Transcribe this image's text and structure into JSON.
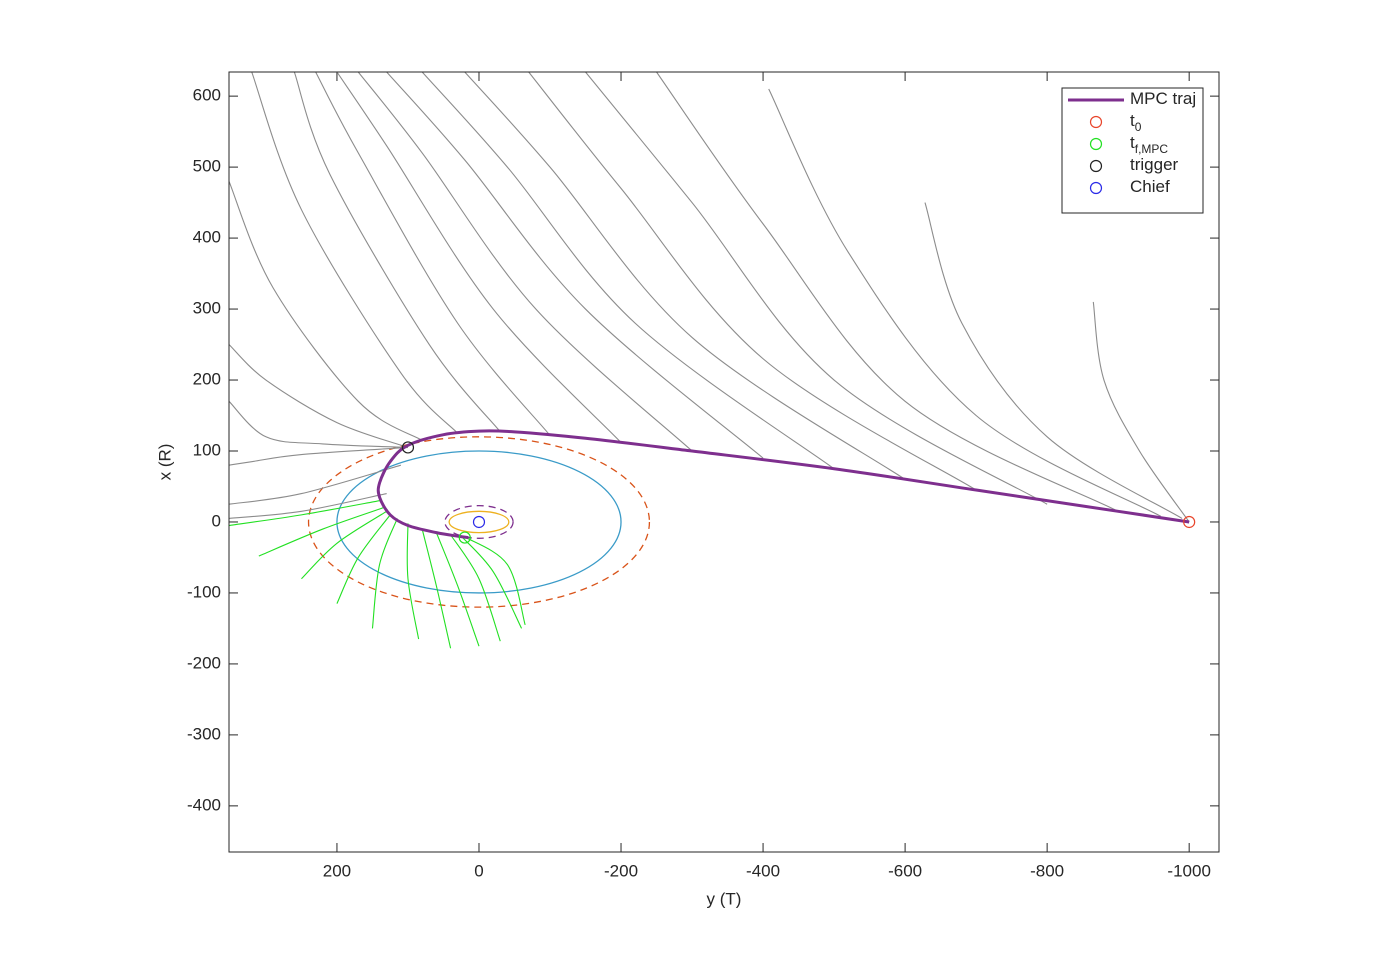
{
  "chart_data": {
    "type": "line",
    "xlabel": "y (T)",
    "ylabel": "x (R)",
    "xlim": [
      352,
      -1042
    ],
    "ylim": [
      -465,
      634
    ],
    "xticks": [
      200,
      0,
      -200,
      -400,
      -600,
      -800,
      -1000
    ],
    "yticks": [
      -400,
      -300,
      -200,
      -100,
      0,
      100,
      200,
      300,
      400,
      500,
      600
    ],
    "legend": "upper right",
    "series": [
      {
        "color": "#8c8c8c",
        "x": [
          -1000,
          -930,
          -880,
          -865
        ],
        "y": [
          0,
          100,
          200,
          310
        ]
      },
      {
        "color": "#8c8c8c",
        "x": [
          -990,
          -800,
          -680,
          -628
        ],
        "y": [
          5,
          120,
          280,
          450
        ]
      },
      {
        "color": "#8c8c8c",
        "x": [
          -960,
          -700,
          -520,
          -408
        ],
        "y": [
          8,
          150,
          380,
          610
        ]
      },
      {
        "color": "#8c8c8c",
        "x": [
          -900,
          -600,
          -400,
          -250
        ],
        "y": [
          15,
          170,
          420,
          634
        ]
      },
      {
        "color": "#8c8c8c",
        "x": [
          -800,
          -500,
          -300,
          -150
        ],
        "y": [
          25,
          200,
          450,
          634
        ]
      },
      {
        "color": "#8c8c8c",
        "x": [
          -700,
          -400,
          -200,
          -70
        ],
        "y": [
          45,
          230,
          470,
          634
        ]
      },
      {
        "color": "#8c8c8c",
        "x": [
          -600,
          -300,
          -100,
          20
        ],
        "y": [
          60,
          260,
          500,
          634
        ]
      },
      {
        "color": "#8c8c8c",
        "x": [
          -500,
          -220,
          -40,
          80
        ],
        "y": [
          75,
          280,
          500,
          634
        ]
      },
      {
        "color": "#8c8c8c",
        "x": [
          -400,
          -150,
          20,
          130
        ],
        "y": [
          90,
          300,
          510,
          634
        ]
      },
      {
        "color": "#8c8c8c",
        "x": [
          -300,
          -80,
          80,
          170
        ],
        "y": [
          100,
          300,
          520,
          634
        ]
      },
      {
        "color": "#8c8c8c",
        "x": [
          -200,
          -20,
          130,
          200
        ],
        "y": [
          112,
          300,
          530,
          634
        ]
      },
      {
        "color": "#8c8c8c",
        "x": [
          -100,
          30,
          170,
          230
        ],
        "y": [
          122,
          280,
          520,
          634
        ]
      },
      {
        "color": "#8c8c8c",
        "x": [
          -30,
          70,
          210,
          260
        ],
        "y": [
          127,
          250,
          490,
          634
        ]
      },
      {
        "color": "#8c8c8c",
        "x": [
          30,
          110,
          250,
          320
        ],
        "y": [
          125,
          210,
          440,
          634
        ]
      },
      {
        "color": "#8c8c8c",
        "x": [
          80,
          170,
          290,
          352
        ],
        "y": [
          115,
          170,
          330,
          480
        ]
      },
      {
        "color": "#8c8c8c",
        "x": [
          100,
          200,
          300,
          352
        ],
        "y": [
          105,
          140,
          200,
          250
        ]
      },
      {
        "color": "#8c8c8c",
        "x": [
          100,
          220,
          300,
          352
        ],
        "y": [
          105,
          110,
          120,
          170
        ]
      },
      {
        "color": "#8c8c8c",
        "x": [
          100,
          250,
          320,
          352
        ],
        "y": [
          105,
          95,
          85,
          80
        ]
      },
      {
        "color": "#8c8c8c",
        "x": [
          110,
          250,
          352
        ],
        "y": [
          80,
          40,
          25
        ]
      },
      {
        "color": "#8c8c8c",
        "x": [
          130,
          250,
          352
        ],
        "y": [
          40,
          15,
          5
        ]
      },
      {
        "color": "#22e022",
        "x": [
          140,
          250,
          352
        ],
        "y": [
          30,
          10,
          -5
        ]
      },
      {
        "color": "#22e022",
        "x": [
          135,
          220,
          310
        ],
        "y": [
          20,
          -10,
          -48
        ]
      },
      {
        "color": "#22e022",
        "x": [
          130,
          200,
          250
        ],
        "y": [
          15,
          -30,
          -80
        ]
      },
      {
        "color": "#22e022",
        "x": [
          125,
          170,
          200
        ],
        "y": [
          10,
          -50,
          -115
        ]
      },
      {
        "color": "#22e022",
        "x": [
          115,
          140,
          150
        ],
        "y": [
          5,
          -60,
          -150
        ]
      },
      {
        "color": "#22e022",
        "x": [
          100,
          100,
          85
        ],
        "y": [
          -2,
          -80,
          -165
        ]
      },
      {
        "color": "#22e022",
        "x": [
          80,
          60,
          40
        ],
        "y": [
          -10,
          -90,
          -178
        ]
      },
      {
        "color": "#22e022",
        "x": [
          60,
          30,
          0
        ],
        "y": [
          -15,
          -90,
          -175
        ]
      },
      {
        "color": "#22e022",
        "x": [
          40,
          0,
          -30
        ],
        "y": [
          -18,
          -80,
          -168
        ]
      },
      {
        "color": "#22e022",
        "x": [
          25,
          -20,
          -60
        ],
        "y": [
          -20,
          -70,
          -150
        ]
      },
      {
        "color": "#22e022",
        "x": [
          20,
          -40,
          -65
        ],
        "y": [
          -21,
          -60,
          -145
        ]
      },
      {
        "name": "MPC traj",
        "color": "#7e2f8e",
        "width": 3,
        "x": [
          -1000,
          -900,
          -700,
          -500,
          -300,
          -150,
          -50,
          0,
          50,
          100,
          125,
          140,
          140,
          125,
          100,
          60,
          30,
          15
        ],
        "y": [
          0,
          15,
          45,
          75,
          100,
          118,
          127,
          128,
          123,
          108,
          85,
          55,
          35,
          10,
          -5,
          -15,
          -20,
          -22
        ]
      },
      {
        "name": "t",
        "subscript": "0",
        "color": "#e8442a",
        "marker": "o",
        "x": [
          -1000
        ],
        "y": [
          0
        ]
      },
      {
        "name": "t",
        "subscript": "f,MPC",
        "color": "#22e022",
        "marker": "o",
        "x": [
          20
        ],
        "y": [
          -22
        ]
      },
      {
        "name": "trigger",
        "color": "#222222",
        "marker": "o",
        "x": [
          100
        ],
        "y": [
          105
        ]
      },
      {
        "name": "Chief",
        "color": "#2a2ae8",
        "marker": "o",
        "x": [
          0
        ],
        "y": [
          0
        ]
      }
    ],
    "ellipses": [
      {
        "color": "#3a9bc8",
        "center": [
          0,
          0
        ],
        "radii": [
          200,
          100
        ],
        "dashed": false
      },
      {
        "color": "#d95319",
        "center": [
          0,
          0
        ],
        "radii": [
          240,
          120
        ],
        "dashed": true
      },
      {
        "color": "#edb120",
        "center": [
          0,
          0
        ],
        "radii": [
          42,
          15
        ],
        "dashed": false
      },
      {
        "color": "#7e2f8e",
        "center": [
          0,
          0
        ],
        "radii": [
          48,
          23
        ],
        "dashed": true
      }
    ]
  }
}
